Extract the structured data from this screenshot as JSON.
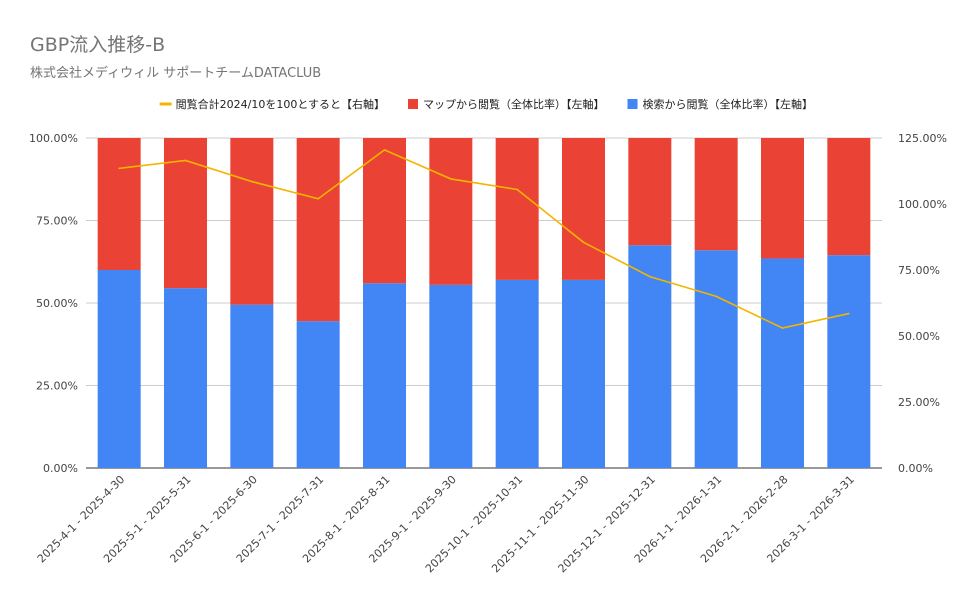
{
  "chart_data": {
    "type": "bar",
    "stacked": true,
    "title": "GBP流入推移-B",
    "subtitle": "株式会社メディウィル サポートチームDATACLUB",
    "categories": [
      "2025-4-1 - 2025-4-30",
      "2025-5-1 - 2025-5-31",
      "2025-6-1 - 2025-6-30",
      "2025-7-1 - 2025-7-31",
      "2025-8-1 - 2025-8-31",
      "2025-9-1 - 2025-9-30",
      "2025-10-1 - 2025-10-31",
      "2025-11-1 - 2025-11-30",
      "2025-12-1 - 2025-12-31",
      "2026-1-1 - 2026-1-31",
      "2026-2-1 - 2026-2-28",
      "2026-3-1 - 2026-3-31"
    ],
    "series": [
      {
        "name": "閲覧合計2024/10を100とすると【右軸】",
        "type": "line",
        "axis": "right",
        "color": "#F4B400",
        "values": [
          113.5,
          116.5,
          108.5,
          102.0,
          120.5,
          109.5,
          105.5,
          85.5,
          72.5,
          65.0,
          53.0,
          58.5
        ]
      },
      {
        "name": "マップから閲覧（全体比率）【左軸】",
        "type": "bar",
        "axis": "left",
        "color": "#EA4335",
        "values": [
          40.0,
          45.5,
          50.5,
          55.5,
          44.0,
          44.5,
          43.0,
          43.0,
          32.5,
          34.0,
          36.5,
          35.5
        ]
      },
      {
        "name": "検索から閲覧（全体比率）【左軸】",
        "type": "bar",
        "axis": "left",
        "color": "#4285F4",
        "values": [
          60.0,
          54.5,
          49.5,
          44.5,
          56.0,
          55.5,
          57.0,
          57.0,
          67.5,
          66.0,
          63.5,
          64.5
        ]
      }
    ],
    "y_left": {
      "ylim": [
        0,
        100
      ],
      "ticks": [
        "0.00%",
        "25.00%",
        "50.00%",
        "75.00%",
        "100.00%"
      ]
    },
    "y_right": {
      "ylim": [
        0,
        125
      ],
      "ticks": [
        "0.00%",
        "25.00%",
        "50.00%",
        "75.00%",
        "100.00%",
        "125.00%"
      ]
    },
    "grid": true,
    "legend": "top-center"
  }
}
